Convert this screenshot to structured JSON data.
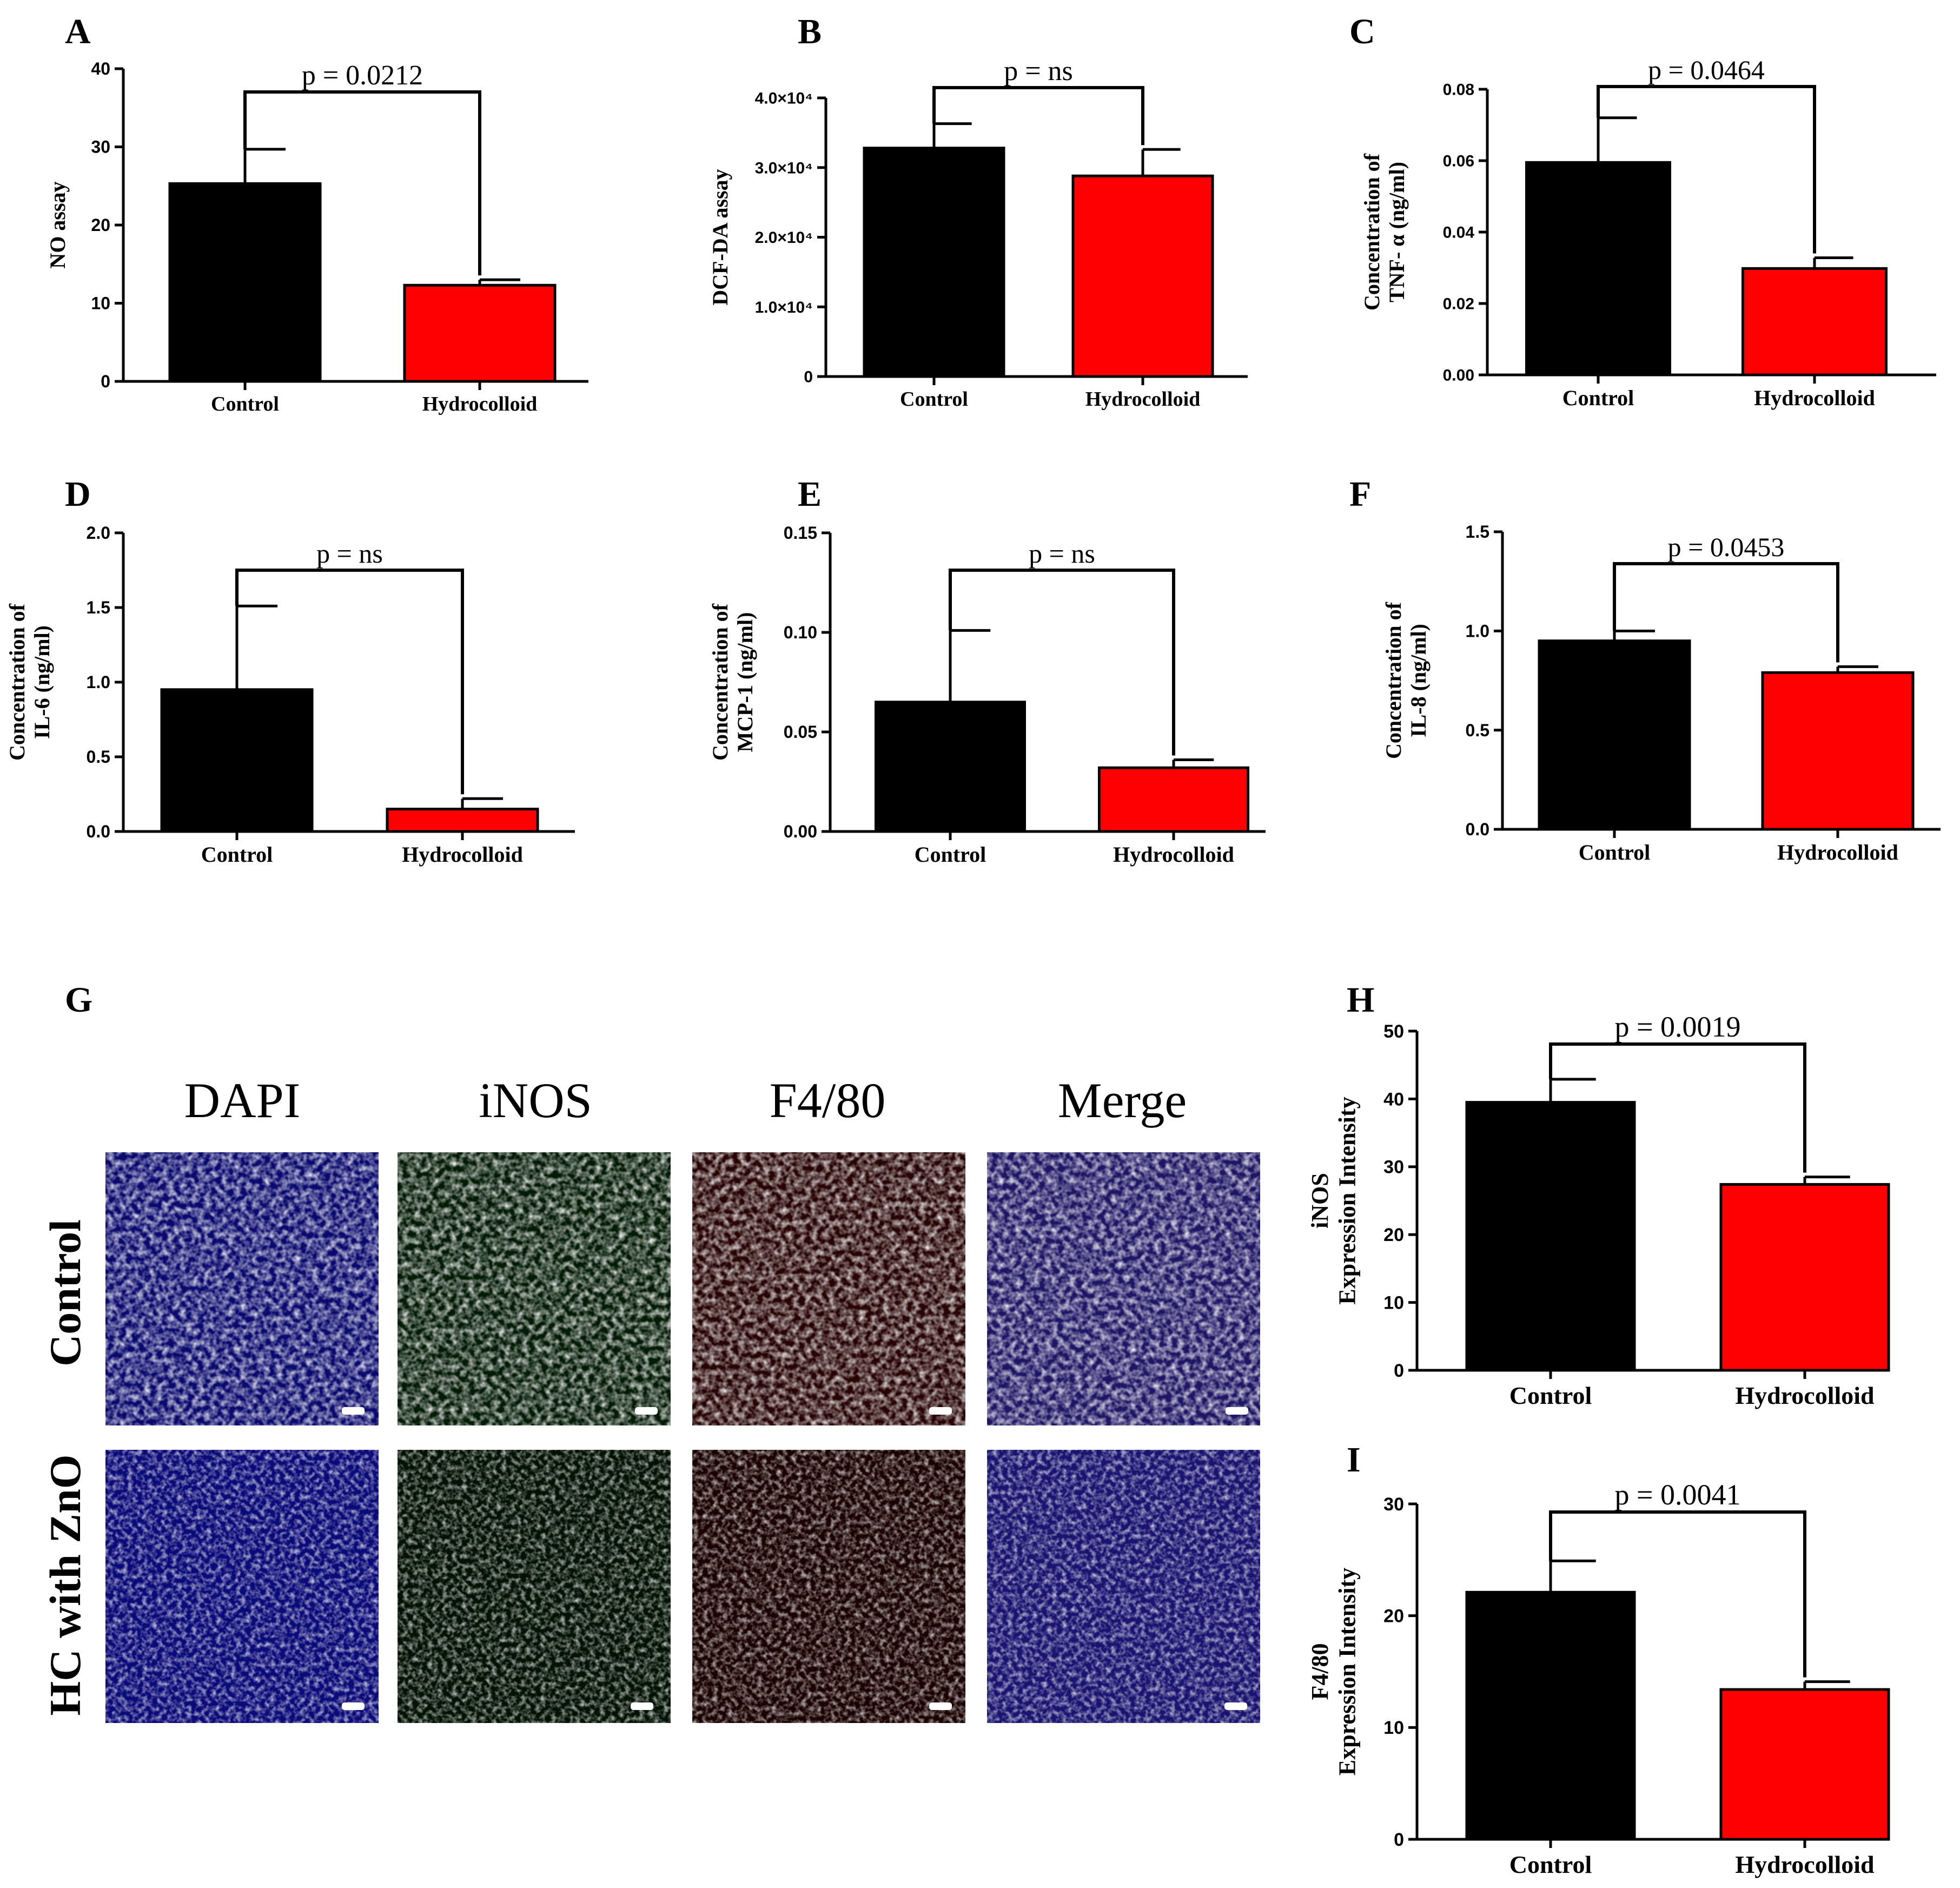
{
  "figure_letters": {
    "A": "A",
    "B": "B",
    "C": "C",
    "D": "D",
    "E": "E",
    "F": "F",
    "G": "G",
    "H": "H",
    "I": "I"
  },
  "colors": {
    "control": "#000000",
    "hydrocolloid": "#ff0000",
    "dapi": "#1414e6",
    "inos": "#10a010",
    "f480": "#c81010",
    "merge": "#5a3ccc"
  },
  "chart_data": [
    {
      "panel": "A",
      "type": "bar",
      "categories": [
        "Control",
        "Hydrocolloid"
      ],
      "values": [
        25.3,
        12.3
      ],
      "errors": [
        4.4,
        0.7
      ],
      "ylabel_lines": [
        "NO assay"
      ],
      "yticks": [
        "0",
        "10",
        "20",
        "30",
        "40"
      ],
      "ylim": [
        0,
        40
      ],
      "p_label": "p = 0.0212"
    },
    {
      "panel": "B",
      "type": "bar",
      "categories": [
        "Control",
        "Hydrocolloid"
      ],
      "values": [
        32800,
        28800
      ],
      "errors": [
        3500,
        3800
      ],
      "ylabel_lines": [
        "DCF-DA assay"
      ],
      "yticks": [
        "0",
        "1.0×10⁴",
        "2.0×10⁴",
        "3.0×10⁴",
        "4.0×10⁴"
      ],
      "ylim": [
        0,
        40000
      ],
      "p_label": "p = ns"
    },
    {
      "panel": "C",
      "type": "bar",
      "categories": [
        "Control",
        "Hydrocolloid"
      ],
      "values": [
        0.0595,
        0.0298
      ],
      "errors": [
        0.0125,
        0.003
      ],
      "ylabel_lines": [
        "Concentration of",
        "TNF- α (ng/ml)"
      ],
      "yticks": [
        "0.00",
        "0.02",
        "0.04",
        "0.06",
        "0.08"
      ],
      "ylim": [
        0,
        0.08
      ],
      "p_label": "p = 0.0464"
    },
    {
      "panel": "D",
      "type": "bar",
      "categories": [
        "Control",
        "Hydrocolloid"
      ],
      "values": [
        0.95,
        0.15
      ],
      "errors": [
        0.56,
        0.07
      ],
      "ylabel_lines": [
        "Concentration of",
        "IL-6 (ng/ml)"
      ],
      "yticks": [
        "0.0",
        "0.5",
        "1.0",
        "1.5",
        "2.0"
      ],
      "ylim": [
        0,
        2.0
      ],
      "p_label": "p = ns"
    },
    {
      "panel": "E",
      "type": "bar",
      "categories": [
        "Control",
        "Hydrocolloid"
      ],
      "values": [
        0.065,
        0.032
      ],
      "errors": [
        0.036,
        0.004
      ],
      "ylabel_lines": [
        "Concentration of",
        "MCP-1 (ng/ml)"
      ],
      "yticks": [
        "0.00",
        "0.05",
        "0.10",
        "0.15"
      ],
      "ylim": [
        0,
        0.15
      ],
      "p_label": "p = ns"
    },
    {
      "panel": "F",
      "type": "bar",
      "categories": [
        "Control",
        "Hydrocolloid"
      ],
      "values": [
        0.95,
        0.79
      ],
      "errors": [
        0.05,
        0.03
      ],
      "ylabel_lines": [
        "Concentration of",
        "IL-8 (ng/ml)"
      ],
      "yticks": [
        "0.0",
        "0.5",
        "1.0",
        "1.5"
      ],
      "ylim": [
        0,
        1.5
      ],
      "p_label": "p = 0.0453"
    },
    {
      "panel": "H",
      "type": "bar",
      "categories": [
        "Control",
        "Hydrocolloid"
      ],
      "values": [
        39.5,
        27.4
      ],
      "errors": [
        3.4,
        1.1
      ],
      "ylabel_lines": [
        "iNOS",
        "Expression Intensity"
      ],
      "yticks": [
        "0",
        "10",
        "20",
        "30",
        "40",
        "50"
      ],
      "ylim": [
        0,
        50
      ],
      "p_label": "p = 0.0019"
    },
    {
      "panel": "I",
      "type": "bar",
      "categories": [
        "Control",
        "Hydrocolloid"
      ],
      "values": [
        22.1,
        13.4
      ],
      "errors": [
        2.8,
        0.7
      ],
      "ylabel_lines": [
        "F4/80",
        "Expression  Intensity"
      ],
      "yticks": [
        "0",
        "10",
        "20",
        "30"
      ],
      "ylim": [
        0,
        30
      ],
      "p_label": "p = 0.0041"
    }
  ],
  "microscopy": {
    "columns": [
      "DAPI",
      "iNOS",
      "F4/80",
      "Merge"
    ],
    "rows": [
      "Control",
      "HC with ZnO"
    ]
  }
}
